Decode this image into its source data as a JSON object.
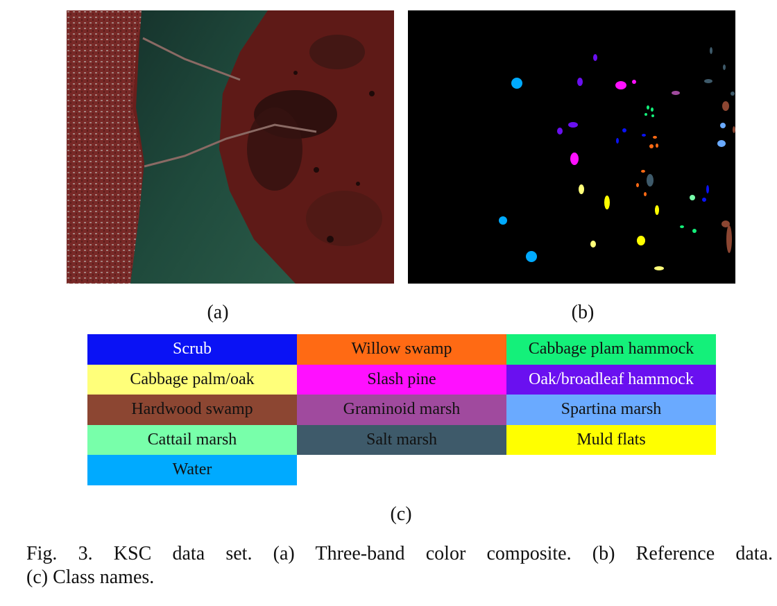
{
  "figure": {
    "panel_a": {
      "label": "(a)"
    },
    "panel_b": {
      "label": "(b)",
      "background_color": "#000000"
    },
    "panel_c": {
      "label": "(c)"
    },
    "legend": {
      "classes": [
        {
          "name": "Scrub",
          "color": "#0a12f5",
          "text_color": "#ffffff"
        },
        {
          "name": "Willow swamp",
          "color": "#ff6a14",
          "text_color": "#111111"
        },
        {
          "name": "Cabbage plam hammock",
          "color": "#14f07a",
          "text_color": "#111111"
        },
        {
          "name": "Cabbage palm/oak",
          "color": "#ffff7a",
          "text_color": "#111111"
        },
        {
          "name": "Slash pine",
          "color": "#ff10ff",
          "text_color": "#111111"
        },
        {
          "name": "Oak/broadleaf hammock",
          "color": "#6a10f0",
          "text_color": "#ffffff"
        },
        {
          "name": "Hardwood swamp",
          "color": "#8c4632",
          "text_color": "#111111"
        },
        {
          "name": "Graminoid marsh",
          "color": "#a04a9e",
          "text_color": "#111111"
        },
        {
          "name": "Spartina marsh",
          "color": "#6aaaff",
          "text_color": "#111111"
        },
        {
          "name": "Cattail marsh",
          "color": "#78ffaa",
          "text_color": "#111111"
        },
        {
          "name": "Salt marsh",
          "color": "#3e5a6a",
          "text_color": "#111111"
        },
        {
          "name": "Muld flats",
          "color": "#ffff00",
          "text_color": "#111111"
        },
        {
          "name": "Water",
          "color": "#00aaff",
          "text_color": "#111111"
        }
      ]
    },
    "caption": {
      "line1": "Fig. 3.   KSC data set. (a) Three-band color composite. (b) Reference data.",
      "line2": "(c) Class names."
    }
  }
}
